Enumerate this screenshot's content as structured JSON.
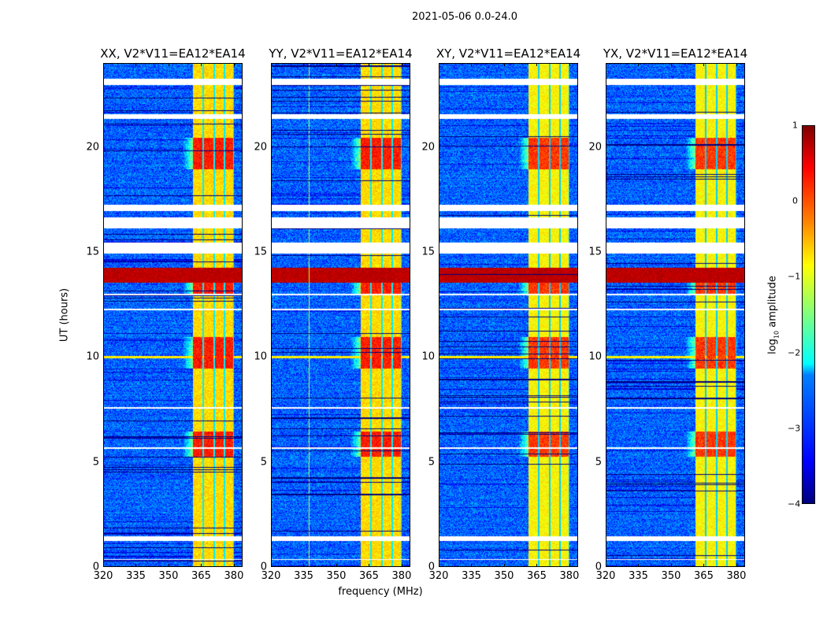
{
  "chart_data": {
    "type": "heatmap",
    "title": "2021-05-06 0.0-24.0",
    "xlabel": "frequency (MHz)",
    "ylabel": "UT (hours)",
    "xlim": [
      320,
      384
    ],
    "ylim": [
      0,
      24
    ],
    "xticks": [
      "320",
      "335",
      "350",
      "365",
      "380"
    ],
    "xtick_values": [
      320,
      335,
      350,
      365,
      380
    ],
    "yticks": [
      "0",
      "5",
      "10",
      "15",
      "20"
    ],
    "ytick_values": [
      0,
      5,
      10,
      15,
      20
    ],
    "colorbar": {
      "label": "log10 amplitude",
      "label_main": "log",
      "label_sub": "10",
      "label_rest": " amplitude",
      "colormap": "jet",
      "range": [
        -4,
        1
      ],
      "ticks": [
        "1",
        "0",
        "−1",
        "−2",
        "−3",
        "−4"
      ],
      "tick_values": [
        1,
        0,
        -1,
        -2,
        -3,
        -4
      ]
    },
    "panels": [
      {
        "title": "XX, V2*V11=EA12*EA14",
        "pol": "XX"
      },
      {
        "title": "YY, V2*V11=EA12*EA14",
        "pol": "YY"
      },
      {
        "title": "XY, V2*V11=EA12*EA14",
        "pol": "XY"
      },
      {
        "title": "YX, V2*V11=EA12*EA14",
        "pol": "YX"
      }
    ],
    "features": {
      "background_level": -2.9,
      "bright_band_mhz": [
        360.5,
        379.5
      ],
      "bright_subband_edges_mhz": [
        360.5,
        365.3,
        370.3,
        375.2,
        379.5
      ],
      "bright_band_level": -0.7,
      "flagged_hours": [
        [
          23.0,
          23.3
        ],
        [
          21.4,
          21.6
        ],
        [
          17.0,
          17.3
        ],
        [
          16.2,
          16.7
        ],
        [
          15.0,
          15.5
        ],
        [
          1.3,
          1.5
        ],
        [
          0.4,
          0.45
        ],
        [
          13.0,
          13.05
        ],
        [
          12.3,
          12.35
        ],
        [
          7.6,
          7.65
        ],
        [
          5.7,
          5.75
        ]
      ],
      "strong_rfi_hours": [
        [
          13.6,
          14.3
        ],
        [
          10.0,
          10.1
        ]
      ],
      "band_enhancement_hours": [
        [
          9.5,
          11.0
        ],
        [
          13.0,
          14.3
        ],
        [
          5.3,
          6.5
        ],
        [
          19.0,
          20.5
        ]
      ]
    }
  }
}
